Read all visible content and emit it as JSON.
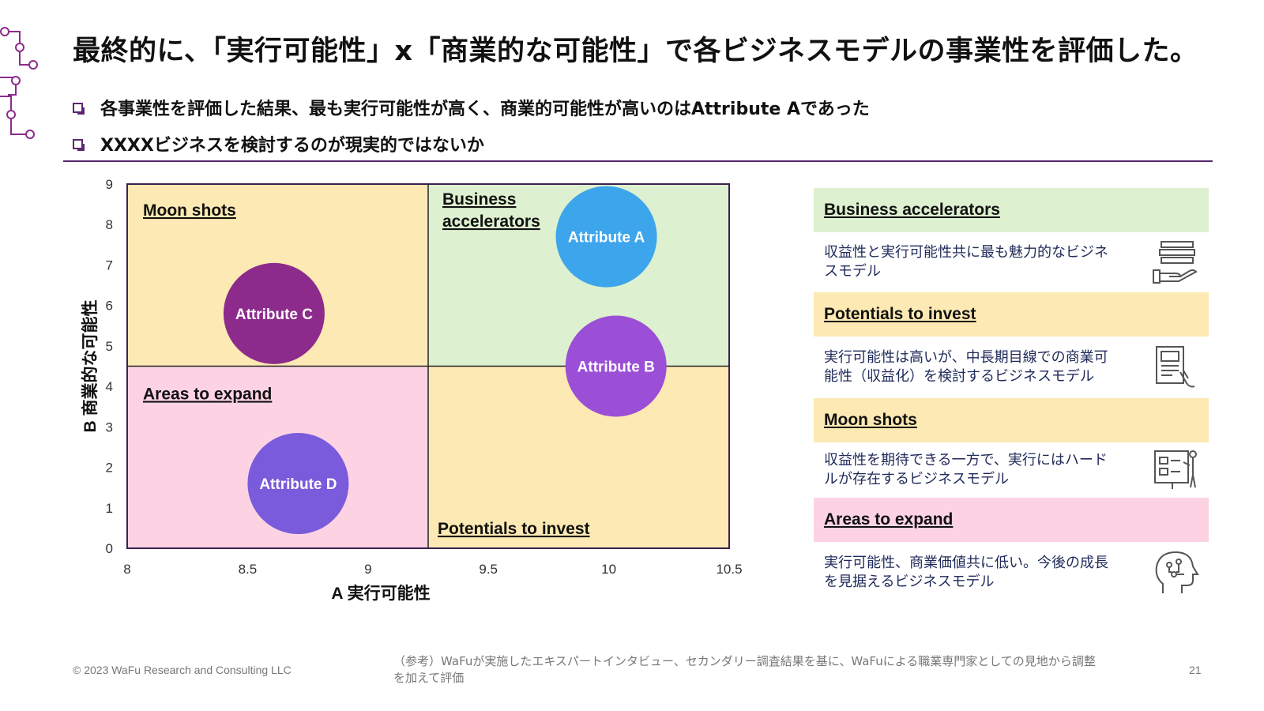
{
  "slide": {
    "title": "最終的に、「実行可能性」x「商業的な可能性」で各ビジネスモデルの事業性を評価した。",
    "bullets": [
      "各事業性を評価した結果、最も実行可能性が高く、商業的可能性が高いのはAttribute Aであった",
      "XXXXビジネスを検討するのが現実的ではないか"
    ],
    "footer_copyright": "© 2023 WaFu Research and Consulting LLC",
    "footer_note": "（参考）WaFuが実施したエキスパートインタビュー、セカンダリー調査結果を基に、WaFuによる職業専門家としての見地から調整を加えて評価",
    "page_number": "21"
  },
  "colors": {
    "accent": "#5a2770",
    "quadrant_yellow": "#fde9b3",
    "quadrant_green": "#ddf0cf",
    "quadrant_pink": "#fdd3e4",
    "legend_text": "#1f2a5a"
  },
  "chart_data": {
    "type": "scatter",
    "xlabel": "A 実行可能性",
    "ylabel": "B 商業的な可能性",
    "xlim": [
      8,
      10.5
    ],
    "ylim": [
      0,
      9
    ],
    "xticks": [
      "8",
      "8.5",
      "9",
      "9.5",
      "10",
      "10.5"
    ],
    "yticks": [
      "0",
      "1",
      "2",
      "3",
      "4",
      "5",
      "6",
      "7",
      "8",
      "9"
    ],
    "x_divider": 9.25,
    "y_divider": 4.5,
    "quadrants": [
      {
        "label": "Moon shots",
        "position": "top-left",
        "color": "#fde9b3"
      },
      {
        "label": "Business accelerators",
        "position": "top-right",
        "color": "#ddf0cf"
      },
      {
        "label": "Areas to expand",
        "position": "bottom-left",
        "color": "#fdd3e4"
      },
      {
        "label": "Potentials to invest",
        "position": "bottom-right",
        "color": "#fde9b3"
      }
    ],
    "points": [
      {
        "label": "Attribute A",
        "x": 9.99,
        "y": 7.7,
        "color": "#3da5ec"
      },
      {
        "label": "Attribute B",
        "x": 10.03,
        "y": 4.5,
        "color": "#9b4fd6"
      },
      {
        "label": "Attribute C",
        "x": 8.61,
        "y": 5.8,
        "color": "#8c2b8c"
      },
      {
        "label": "Attribute D",
        "x": 8.71,
        "y": 1.6,
        "color": "#7a5bdb"
      }
    ],
    "grid": false
  },
  "legend": [
    {
      "title": "Business accelerators",
      "color": "#ddf0cf",
      "text": "収益性と実行可能性共に最も魅力的なビジネスモデル",
      "icon": "stacked-bills-hand-icon"
    },
    {
      "title": "Potentials to invest",
      "color": "#fde9b3",
      "text": "実行可能性は高いが、中長期目線での商業可能性（収益化）を検討するビジネスモデル",
      "icon": "document-touch-icon"
    },
    {
      "title": "Moon shots",
      "color": "#fde9b3",
      "text": "収益性を期待できる一方で、実行にはハードルが存在するビジネスモデル",
      "icon": "presentation-board-icon"
    },
    {
      "title": "Areas to expand",
      "color": "#fdd3e4",
      "text": "実行可能性、商業価値共に低い。今後の成長を見据えるビジネスモデル",
      "icon": "circuit-head-icon"
    }
  ]
}
